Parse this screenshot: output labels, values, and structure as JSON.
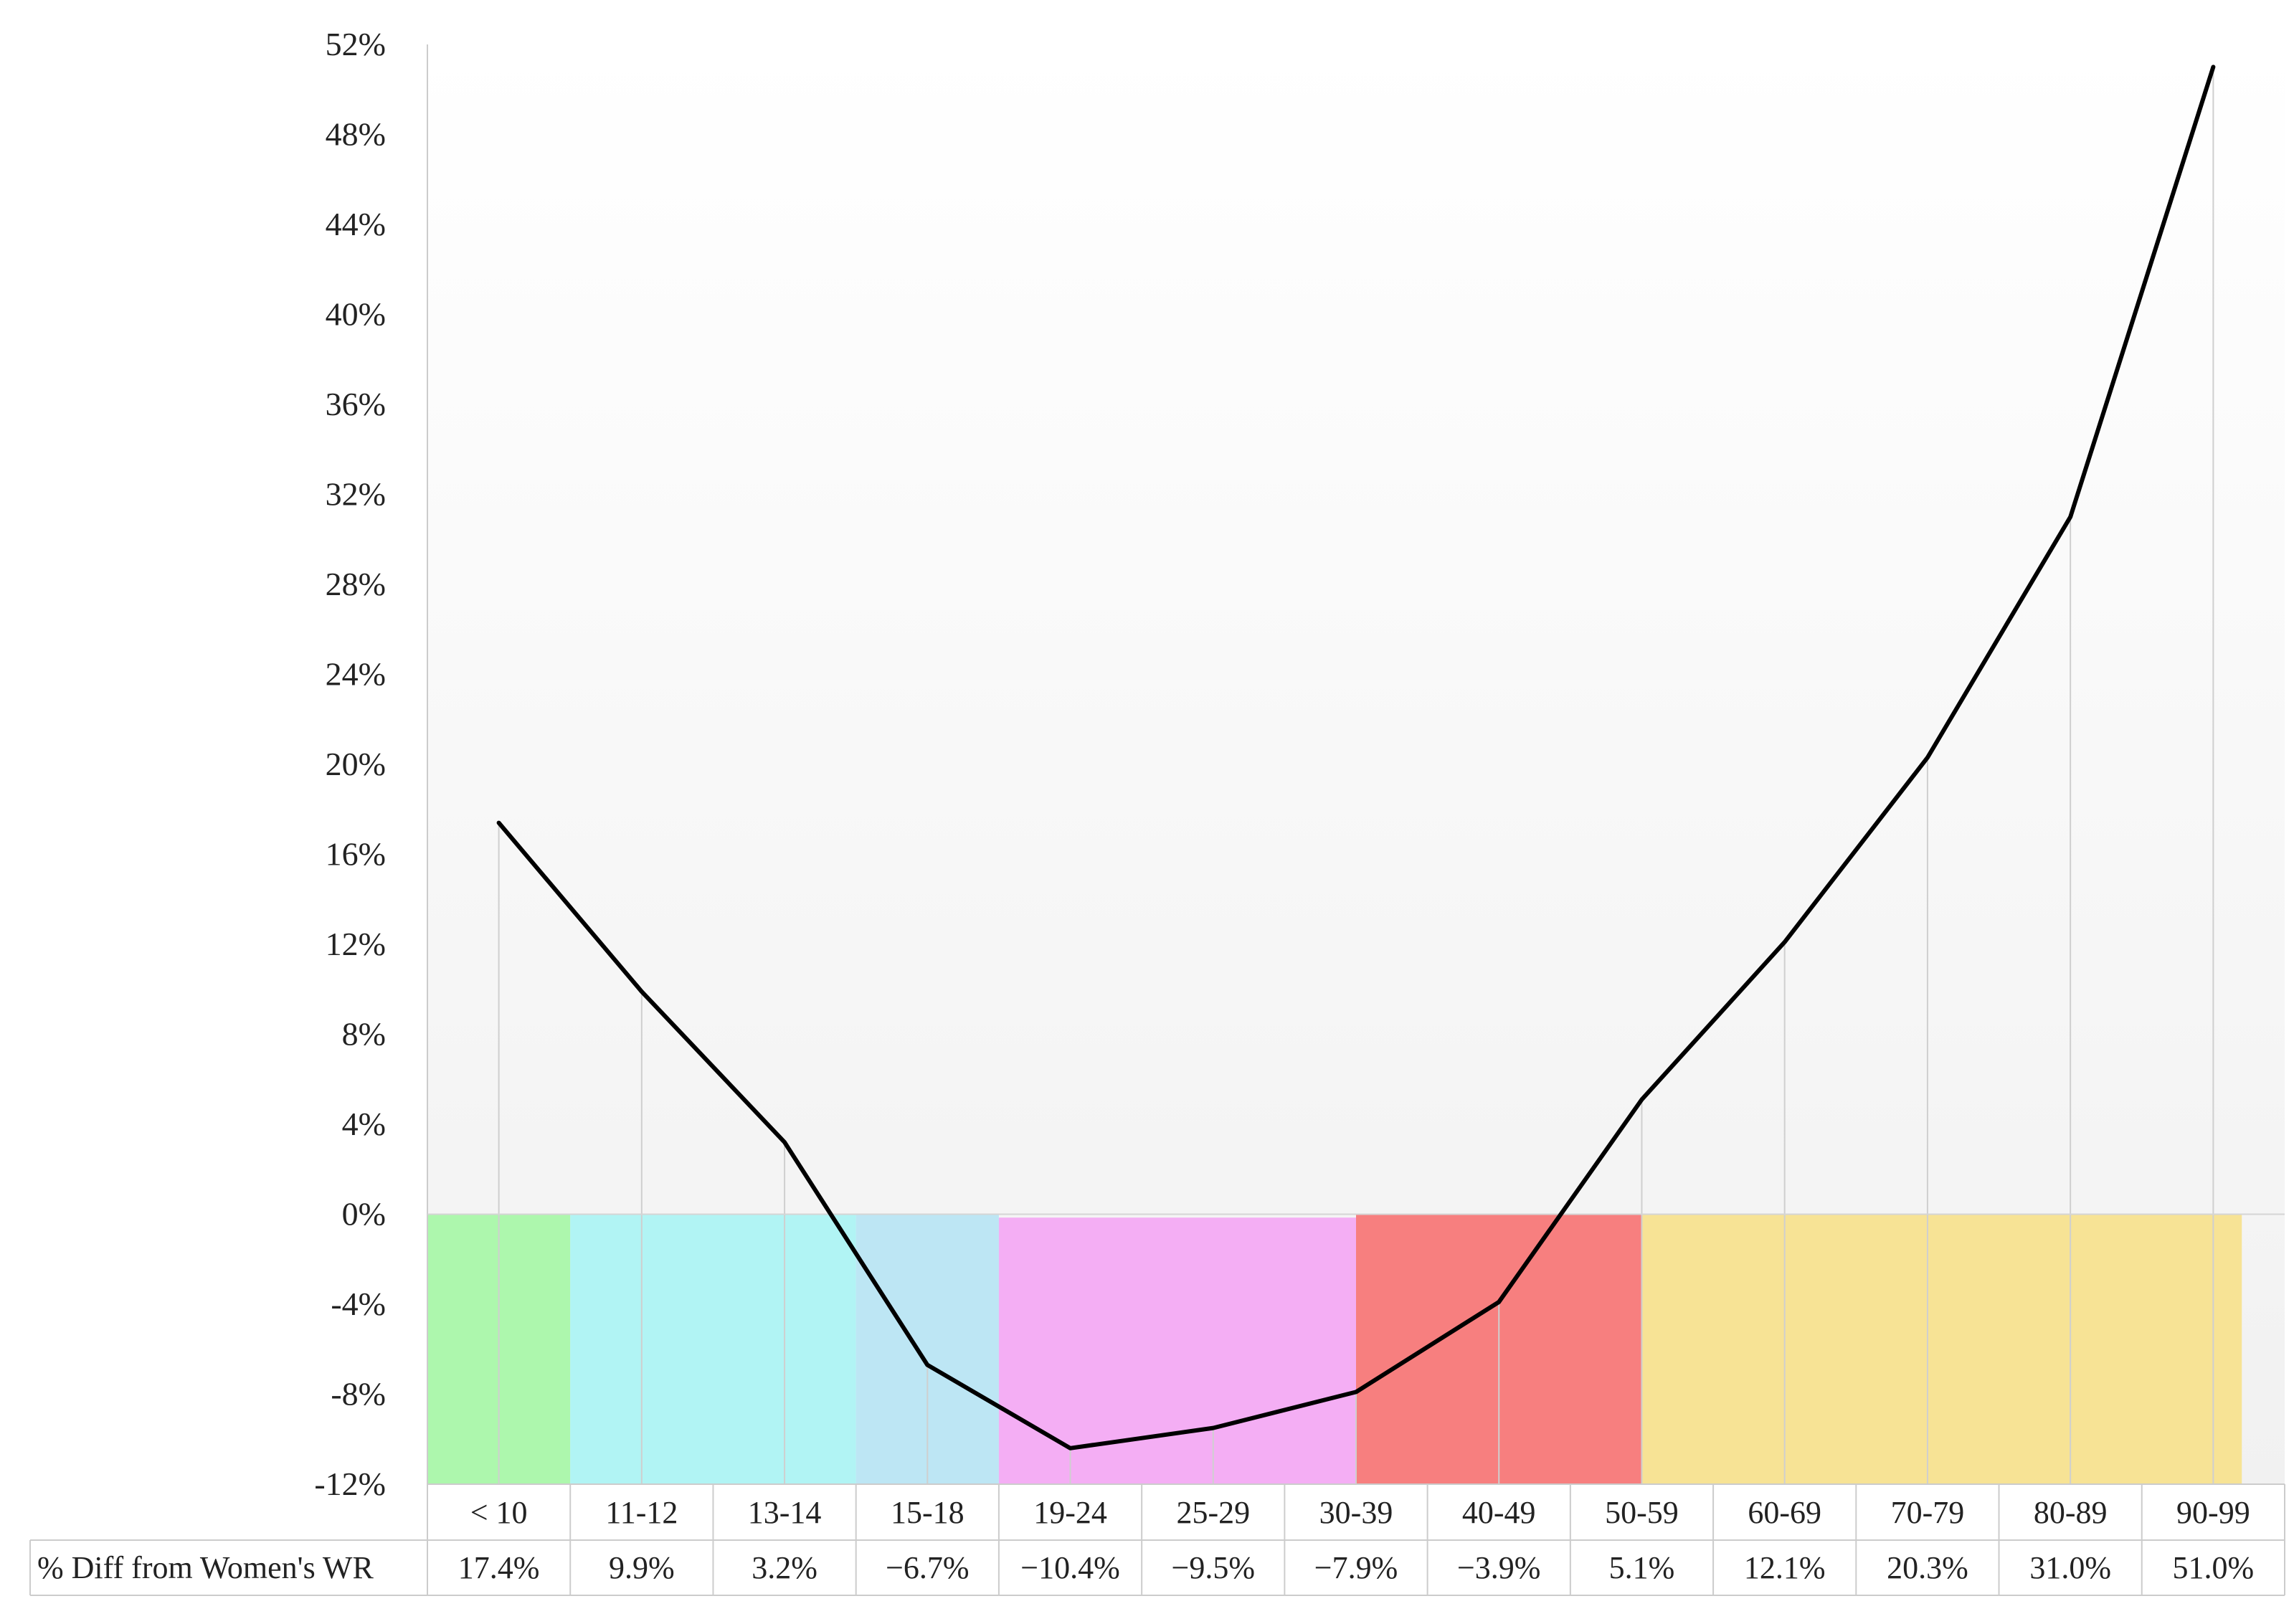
{
  "chart_data": {
    "type": "line",
    "title": "",
    "xlabel": "",
    "ylabel": "",
    "categories": [
      "< 10",
      "11-12",
      "13-14",
      "15-18",
      "19-24",
      "25-29",
      "30-39",
      "40-49",
      "50-59",
      "60-69",
      "70-79",
      "80-89",
      "90-99"
    ],
    "series": [
      {
        "values": [
          17.4,
          9.9,
          3.2,
          -6.7,
          -10.4,
          -9.5,
          -7.9,
          -3.9,
          5.1,
          12.1,
          20.3,
          31.0,
          51.0
        ]
      }
    ],
    "ylim": [
      -12,
      52
    ],
    "yticks": [
      52,
      48,
      44,
      40,
      36,
      32,
      28,
      24,
      20,
      16,
      12,
      8,
      4,
      0,
      -4,
      -8,
      -12
    ],
    "ytick_labels": [
      "52%",
      "48%",
      "44%",
      "40%",
      "36%",
      "32%",
      "28%",
      "24%",
      "20%",
      "16%",
      "12%",
      "8%",
      "4%",
      "0%",
      "-4%",
      "-8%",
      "-12%"
    ],
    "grid": "vertical",
    "line_color": "#000000",
    "bands": [
      {
        "start": 0,
        "end": 1,
        "from": -12,
        "to": 0,
        "color": "#adf7ad"
      },
      {
        "start": 1,
        "end": 3,
        "from": -12,
        "to": 0,
        "color": "#b1f4f4"
      },
      {
        "start": 3,
        "end": 4,
        "from": -12,
        "to": 0,
        "color": "#bde6f4"
      },
      {
        "start": 4,
        "end": 6.5,
        "from": -12,
        "to": -0.15,
        "color": "#f4aef4"
      },
      {
        "start": 6.5,
        "end": 8.5,
        "from": -12,
        "to": 0,
        "color": "#f77f7f"
      },
      {
        "start": 8.5,
        "end": 12.7,
        "from": -12,
        "to": 0,
        "color": "#f7e395"
      }
    ],
    "table": {
      "row_label": "% Diff from Women's WR",
      "cells": [
        "17.4%",
        "9.9%",
        "3.2%",
        "−6.7%",
        "−10.4%",
        "−9.5%",
        "−7.9%",
        "−3.9%",
        "5.1%",
        "12.1%",
        "20.3%",
        "31.0%",
        "51.0%"
      ]
    }
  }
}
